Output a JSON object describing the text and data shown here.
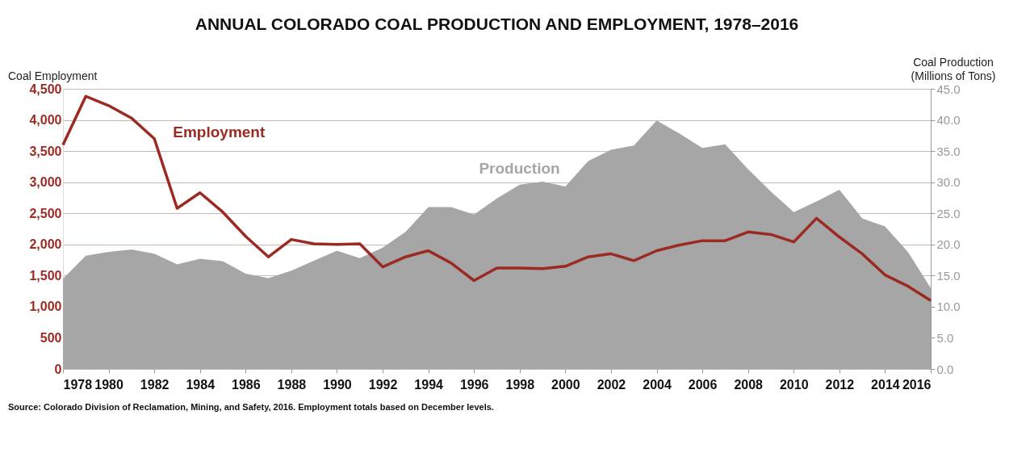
{
  "chart_data": {
    "type": "line",
    "title": "ANNUAL COLORADO COAL PRODUCTION AND EMPLOYMENT, 1978–2016",
    "ylabel": "Coal Employment",
    "y2label": "Coal Production\n(Millions of Tons)",
    "x": [
      1978,
      1979,
      1980,
      1981,
      1982,
      1983,
      1984,
      1985,
      1986,
      1987,
      1988,
      1989,
      1990,
      1991,
      1992,
      1993,
      1994,
      1995,
      1996,
      1997,
      1998,
      1999,
      2000,
      2001,
      2002,
      2003,
      2004,
      2005,
      2006,
      2007,
      2008,
      2009,
      2010,
      2011,
      2012,
      2013,
      2014,
      2015,
      2016
    ],
    "series": [
      {
        "name": "Production",
        "type": "area",
        "axis": "y2",
        "color": "#a6a6a6",
        "values": [
          14.5,
          18.2,
          18.8,
          19.2,
          18.5,
          16.8,
          17.7,
          17.3,
          15.3,
          14.6,
          15.8,
          17.4,
          19.0,
          17.8,
          19.5,
          22.0,
          26.0,
          26.0,
          24.8,
          27.4,
          29.6,
          30.1,
          29.3,
          33.4,
          35.2,
          35.9,
          39.9,
          37.8,
          35.5,
          36.1,
          32.1,
          28.5,
          25.2,
          26.9,
          28.8,
          24.2,
          22.9,
          18.8,
          13.0
        ]
      },
      {
        "name": "Employment",
        "color": "#9b2a22",
        "values": [
          3600,
          4380,
          4230,
          4030,
          3700,
          2580,
          2830,
          2520,
          2130,
          1800,
          2080,
          2010,
          2000,
          2010,
          1640,
          1800,
          1900,
          1700,
          1420,
          1620,
          1620,
          1610,
          1650,
          1800,
          1850,
          1740,
          1900,
          1990,
          2060,
          2060,
          2200,
          2160,
          2040,
          2420,
          2120,
          1850,
          1510,
          1330,
          1100
        ]
      }
    ],
    "xlim": [
      1978,
      2016
    ],
    "xticks": [
      1978,
      1980,
      1982,
      1984,
      1986,
      1988,
      1990,
      1992,
      1994,
      1996,
      1998,
      2000,
      2002,
      2004,
      2006,
      2008,
      2010,
      2012,
      2014,
      2016
    ],
    "ylim": [
      0,
      4500
    ],
    "yticks": [
      0,
      500,
      {
        "value": 1000,
        "label": "1,000"
      },
      {
        "value": 1500,
        "label": "1,500"
      },
      {
        "value": 2000,
        "label": "2,000"
      },
      {
        "value": 2500,
        "label": "2,500"
      },
      {
        "value": 3000,
        "label": "3,000"
      },
      {
        "value": 3500,
        "label": "3,500"
      },
      {
        "value": 4000,
        "label": "4,000"
      },
      {
        "value": 4500,
        "label": "4,500"
      }
    ],
    "y2lim": [
      0,
      45
    ],
    "y2ticks": [
      {
        "value": 0,
        "label": "0.0"
      },
      {
        "value": 5,
        "label": "5.0"
      },
      {
        "value": 10,
        "label": "10.0"
      },
      {
        "value": 15,
        "label": "15.0"
      },
      {
        "value": 20,
        "label": "20.0"
      },
      {
        "value": 25,
        "label": "25.0"
      },
      {
        "value": 30,
        "label": "30.0"
      },
      {
        "value": 35,
        "label": "35.0"
      },
      {
        "value": 40,
        "label": "40.0"
      },
      {
        "value": 45,
        "label": "45.0"
      }
    ],
    "grid": "y",
    "annotations": [
      "Source: Colorado Division of Reclamation, Mining, and Safety, 2016. Employment totals based on December levels."
    ]
  }
}
